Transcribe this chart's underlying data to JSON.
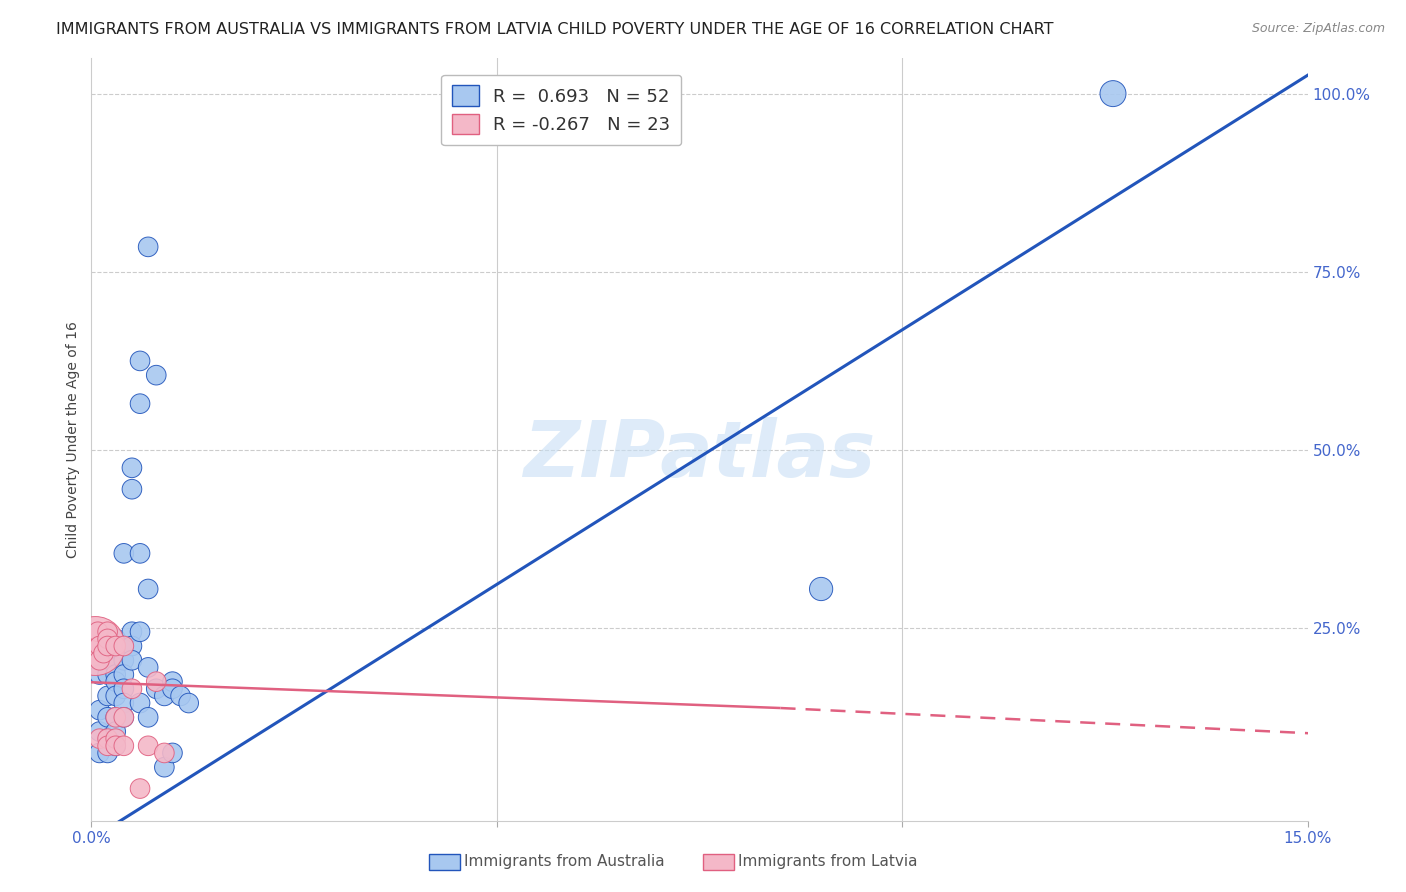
{
  "title": "IMMIGRANTS FROM AUSTRALIA VS IMMIGRANTS FROM LATVIA CHILD POVERTY UNDER THE AGE OF 16 CORRELATION CHART",
  "source": "Source: ZipAtlas.com",
  "ylabel": "Child Poverty Under the Age of 16",
  "right_yticks": [
    "100.0%",
    "75.0%",
    "50.0%",
    "25.0%"
  ],
  "right_ytick_vals": [
    1.0,
    0.75,
    0.5,
    0.25
  ],
  "legend_aus_r": "0.693",
  "legend_aus_n": "52",
  "legend_lat_r": "-0.267",
  "legend_lat_n": "23",
  "aus_color": "#a8c8f0",
  "lat_color": "#f4b8c8",
  "aus_line_color": "#2255bb",
  "lat_line_color": "#e06080",
  "watermark": "ZIPatlas",
  "australia_points": [
    [
      0.001,
      0.185
    ],
    [
      0.001,
      0.135
    ],
    [
      0.001,
      0.105
    ],
    [
      0.001,
      0.075
    ],
    [
      0.002,
      0.225
    ],
    [
      0.002,
      0.205
    ],
    [
      0.002,
      0.185
    ],
    [
      0.002,
      0.155
    ],
    [
      0.002,
      0.125
    ],
    [
      0.002,
      0.095
    ],
    [
      0.002,
      0.075
    ],
    [
      0.003,
      0.235
    ],
    [
      0.003,
      0.215
    ],
    [
      0.003,
      0.195
    ],
    [
      0.003,
      0.185
    ],
    [
      0.003,
      0.175
    ],
    [
      0.003,
      0.155
    ],
    [
      0.003,
      0.125
    ],
    [
      0.003,
      0.105
    ],
    [
      0.003,
      0.085
    ],
    [
      0.004,
      0.355
    ],
    [
      0.004,
      0.225
    ],
    [
      0.004,
      0.205
    ],
    [
      0.004,
      0.185
    ],
    [
      0.004,
      0.165
    ],
    [
      0.004,
      0.145
    ],
    [
      0.004,
      0.125
    ],
    [
      0.005,
      0.475
    ],
    [
      0.005,
      0.445
    ],
    [
      0.005,
      0.245
    ],
    [
      0.005,
      0.225
    ],
    [
      0.005,
      0.205
    ],
    [
      0.006,
      0.625
    ],
    [
      0.006,
      0.565
    ],
    [
      0.006,
      0.355
    ],
    [
      0.006,
      0.245
    ],
    [
      0.006,
      0.145
    ],
    [
      0.007,
      0.785
    ],
    [
      0.007,
      0.305
    ],
    [
      0.007,
      0.195
    ],
    [
      0.007,
      0.125
    ],
    [
      0.008,
      0.605
    ],
    [
      0.008,
      0.165
    ],
    [
      0.009,
      0.155
    ],
    [
      0.009,
      0.055
    ],
    [
      0.01,
      0.175
    ],
    [
      0.01,
      0.165
    ],
    [
      0.01,
      0.075
    ],
    [
      0.011,
      0.155
    ],
    [
      0.012,
      0.145
    ],
    [
      0.126,
      1.0
    ],
    [
      0.09,
      0.305
    ]
  ],
  "latvia_points": [
    [
      0.0005,
      0.225
    ],
    [
      0.0008,
      0.245
    ],
    [
      0.001,
      0.225
    ],
    [
      0.001,
      0.205
    ],
    [
      0.001,
      0.095
    ],
    [
      0.0015,
      0.215
    ],
    [
      0.002,
      0.245
    ],
    [
      0.002,
      0.235
    ],
    [
      0.002,
      0.225
    ],
    [
      0.002,
      0.095
    ],
    [
      0.002,
      0.085
    ],
    [
      0.003,
      0.225
    ],
    [
      0.003,
      0.125
    ],
    [
      0.003,
      0.095
    ],
    [
      0.003,
      0.085
    ],
    [
      0.004,
      0.225
    ],
    [
      0.004,
      0.125
    ],
    [
      0.004,
      0.085
    ],
    [
      0.005,
      0.165
    ],
    [
      0.006,
      0.025
    ],
    [
      0.007,
      0.085
    ],
    [
      0.008,
      0.175
    ],
    [
      0.009,
      0.075
    ]
  ],
  "aus_sizes": [
    200,
    200,
    200,
    200,
    200,
    200,
    200,
    200,
    200,
    200,
    200,
    200,
    200,
    200,
    200,
    200,
    200,
    200,
    200,
    200,
    200,
    200,
    200,
    200,
    200,
    200,
    200,
    200,
    200,
    200,
    200,
    200,
    200,
    200,
    200,
    200,
    200,
    200,
    200,
    200,
    200,
    200,
    200,
    200,
    200,
    200,
    200,
    200,
    200,
    200,
    350,
    280
  ],
  "lat_sizes": [
    1800,
    200,
    200,
    200,
    200,
    200,
    200,
    200,
    200,
    200,
    200,
    200,
    200,
    200,
    200,
    200,
    200,
    200,
    200,
    200,
    200,
    200,
    200
  ],
  "xlim": [
    0.0,
    0.15
  ],
  "ylim": [
    -0.02,
    1.05
  ],
  "background_color": "#ffffff",
  "grid_color": "#cccccc",
  "title_fontsize": 11.5,
  "axis_label_fontsize": 10,
  "tick_color": "#4466cc"
}
